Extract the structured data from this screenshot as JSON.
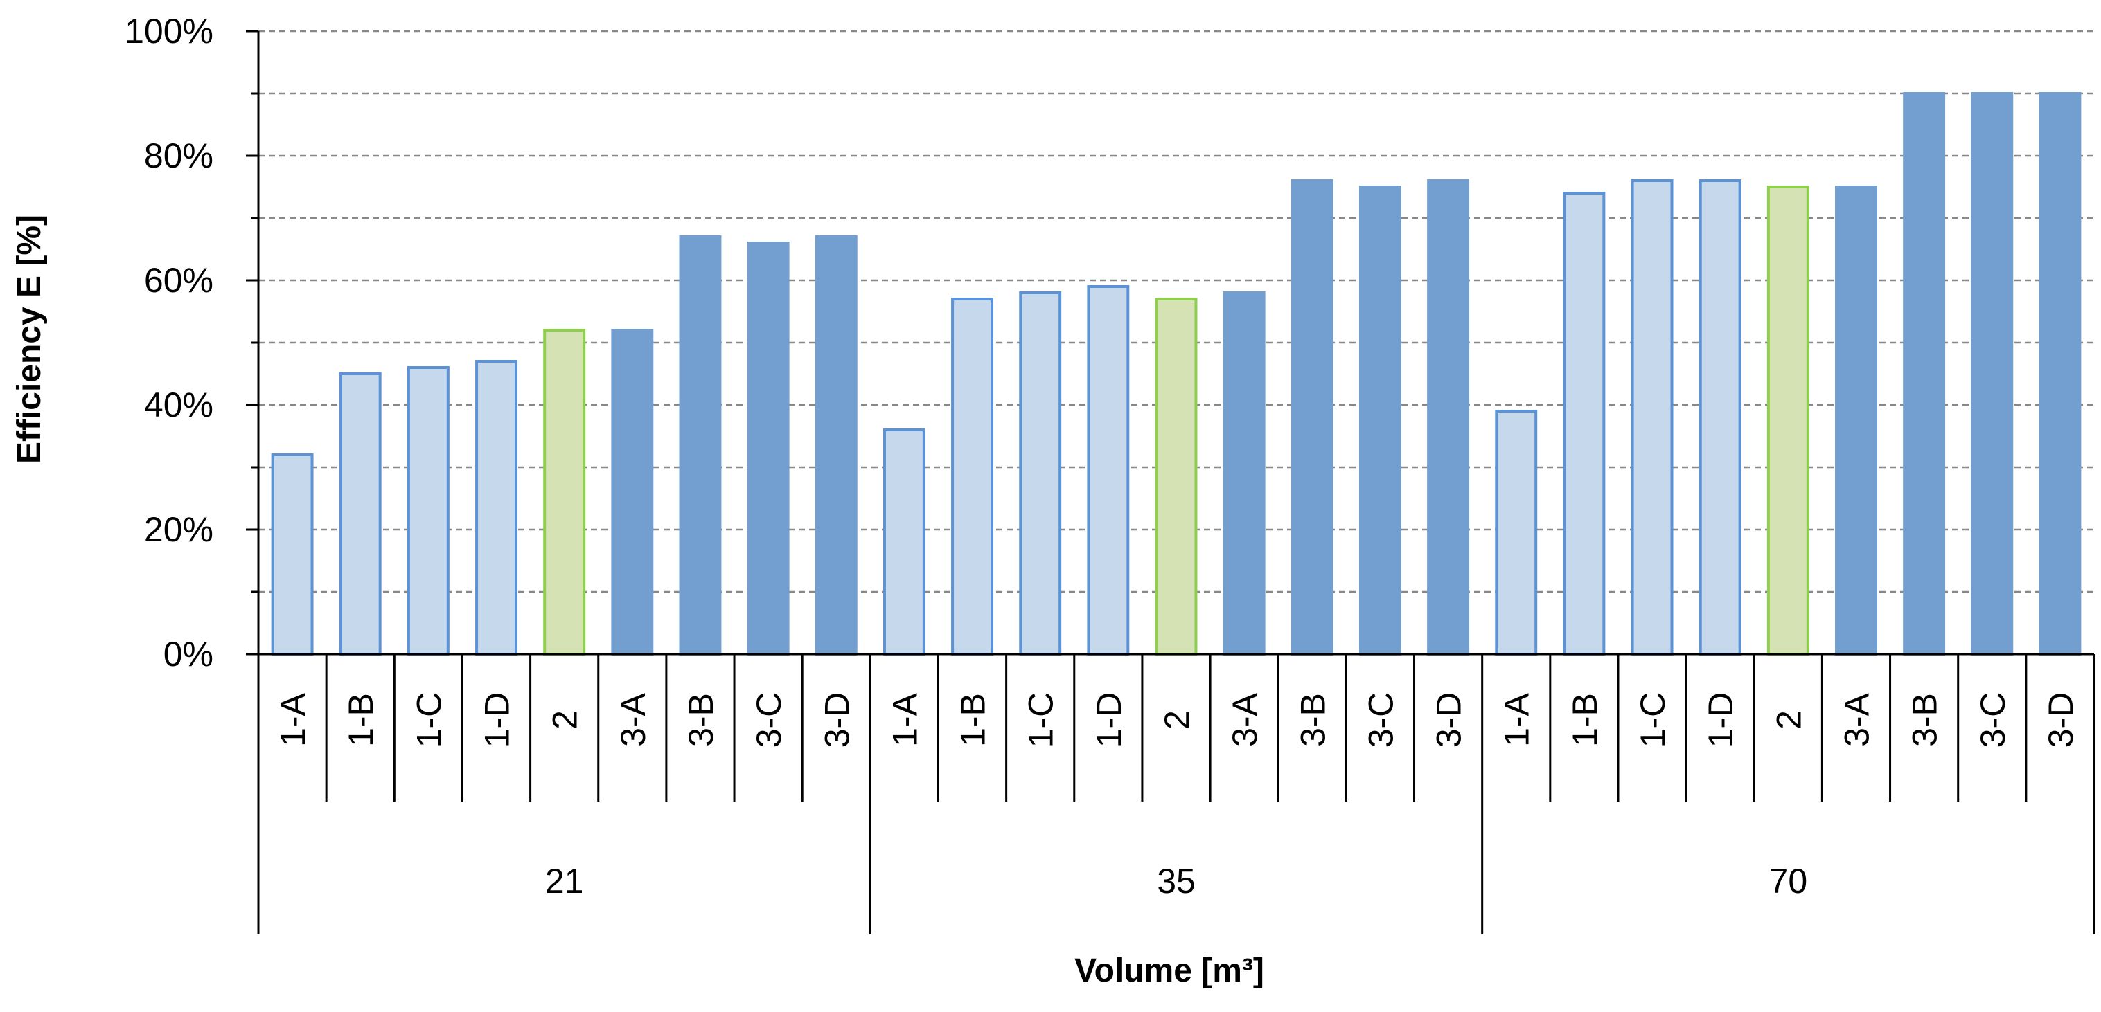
{
  "chart_data": {
    "type": "bar",
    "xlabel": "Volume [m³]",
    "ylabel": "Efficiency E [%]",
    "ylim": [
      0,
      100
    ],
    "yticks": [
      "0%",
      "20%",
      "40%",
      "60%",
      "80%",
      "100%"
    ],
    "grid": "dashed horizontal gridlines every 10%",
    "groups": [
      {
        "label": "21",
        "categories": [
          "1-A",
          "1-B",
          "1-C",
          "1-D",
          "2",
          "3-A",
          "3-B",
          "3-C",
          "3-D"
        ],
        "values": [
          32,
          45,
          46,
          47,
          52,
          52,
          67,
          66,
          67
        ]
      },
      {
        "label": "35",
        "categories": [
          "1-A",
          "1-B",
          "1-C",
          "1-D",
          "2",
          "3-A",
          "3-B",
          "3-C",
          "3-D"
        ],
        "values": [
          36,
          57,
          58,
          59,
          57,
          58,
          76,
          75,
          76
        ]
      },
      {
        "label": "70",
        "categories": [
          "1-A",
          "1-B",
          "1-C",
          "1-D",
          "2",
          "3-A",
          "3-B",
          "3-C",
          "3-D"
        ],
        "values": [
          39,
          74,
          76,
          76,
          75,
          75,
          90,
          90,
          90
        ]
      }
    ],
    "styles": {
      "1": {
        "fill": "#c6d8ec",
        "stroke": "#5b93d6"
      },
      "2": {
        "fill": "#d4e2b4",
        "stroke": "#8fcf4f"
      },
      "3": {
        "fill": "#729fcf",
        "stroke": "#729fcf"
      }
    }
  }
}
